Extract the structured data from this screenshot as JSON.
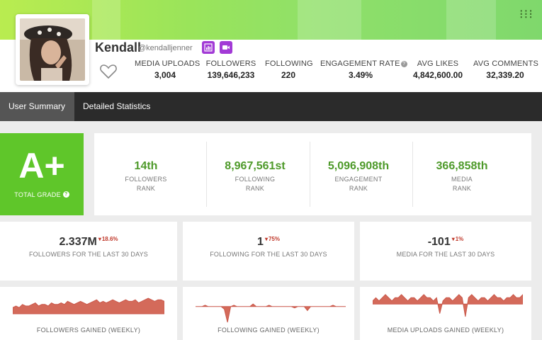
{
  "profile": {
    "name": "Kendall",
    "handle": "@kendalljenner"
  },
  "stats": [
    {
      "label": "MEDIA UPLOADS",
      "value": "3,004"
    },
    {
      "label": "FOLLOWERS",
      "value": "139,646,233"
    },
    {
      "label": "FOLLOWING",
      "value": "220"
    },
    {
      "label": "ENGAGEMENT RATE",
      "value": "3.49%"
    },
    {
      "label": "AVG LIKES",
      "value": "4,842,600.00"
    },
    {
      "label": "AVG COMMENTS",
      "value": "32,339.20"
    }
  ],
  "tabs": [
    {
      "label": "User Summary",
      "active": true
    },
    {
      "label": "Detailed Statistics",
      "active": false
    }
  ],
  "grade": {
    "value": "A+",
    "label": "TOTAL GRADE"
  },
  "ranks": [
    {
      "value": "14th",
      "line1": "FOLLOWERS",
      "line2": "RANK"
    },
    {
      "value": "8,967,561st",
      "line1": "FOLLOWING",
      "line2": "RANK"
    },
    {
      "value": "5,096,908th",
      "line1": "ENGAGEMENT",
      "line2": "RANK"
    },
    {
      "value": "366,858th",
      "line1": "MEDIA",
      "line2": "RANK"
    }
  ],
  "trends": [
    {
      "value": "2.337M",
      "change": "18.6%",
      "caption": "FOLLOWERS FOR THE LAST 30 DAYS"
    },
    {
      "value": "1",
      "change": "75%",
      "caption": "FOLLOWING FOR THE LAST 30 DAYS"
    },
    {
      "value": "-101",
      "change": "1%",
      "caption": "MEDIA FOR THE LAST 30 DAYS"
    }
  ],
  "sparklines": [
    {
      "caption": "FOLLOWERS GAINED (WEEKLY)",
      "values": [
        4,
        5,
        4,
        6,
        5,
        5,
        6,
        7,
        5,
        6,
        6,
        5,
        7,
        6,
        6,
        7,
        6,
        8,
        7,
        6,
        7,
        8,
        7,
        6,
        7,
        8,
        9,
        7,
        8,
        7,
        8,
        9,
        8,
        7,
        8,
        9,
        8,
        8,
        9,
        7,
        8,
        9,
        10,
        9,
        8,
        9,
        9,
        8
      ]
    },
    {
      "caption": "FOLLOWING GAINED (WEEKLY)",
      "values": [
        0,
        0,
        0,
        1,
        0,
        0,
        0,
        0,
        0,
        -2,
        -12,
        0,
        1,
        0,
        0,
        0,
        0,
        0,
        2,
        0,
        0,
        0,
        0,
        1,
        0,
        0,
        0,
        0,
        0,
        0,
        0,
        -1,
        0,
        0,
        0,
        -3,
        0,
        0,
        0,
        0,
        0,
        0,
        0,
        1,
        0,
        0,
        0,
        0
      ]
    },
    {
      "caption": "MEDIA UPLOADS GAINED (WEEKLY)",
      "values": [
        1,
        2,
        1,
        2,
        3,
        2,
        1,
        2,
        2,
        3,
        2,
        1,
        2,
        2,
        1,
        2,
        3,
        2,
        2,
        1,
        2,
        -3,
        1,
        2,
        2,
        1,
        2,
        3,
        2,
        -4,
        2,
        3,
        2,
        1,
        2,
        2,
        1,
        2,
        3,
        2,
        2,
        1,
        2,
        2,
        3,
        2,
        2,
        3
      ]
    }
  ],
  "colors": {
    "accent_green": "#5fc62a",
    "rank_green": "#4e9a2a",
    "negative_red": "#c0392b",
    "spark_fill": "#d46a5a",
    "nav_dark": "#2b2b2b"
  }
}
